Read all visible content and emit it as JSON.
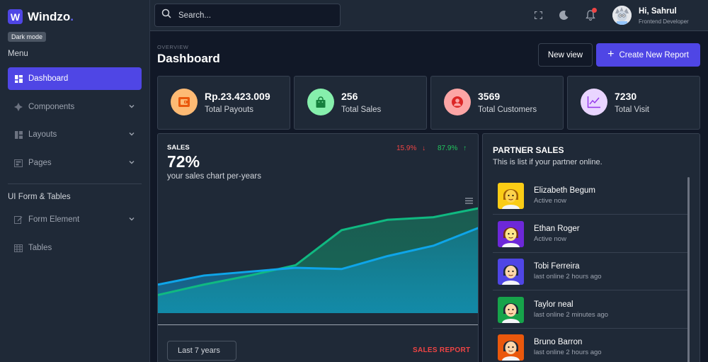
{
  "app": {
    "brand_letter": "W",
    "brand_name": "Windzo",
    "tooltip": "Dark mode"
  },
  "sidebar": {
    "menu_title": "Menu",
    "items": [
      {
        "label": "Dashboard",
        "icon": "grid-icon",
        "active": true
      },
      {
        "label": "Components",
        "icon": "diamond-icon"
      },
      {
        "label": "Layouts",
        "icon": "layout-icon"
      },
      {
        "label": "Pages",
        "icon": "pages-icon"
      }
    ],
    "form_title": "UI Form & Tables",
    "form_items": [
      {
        "label": "Form Element",
        "icon": "edit-icon"
      },
      {
        "label": "Tables",
        "icon": "table-icon"
      }
    ]
  },
  "topbar": {
    "search_placeholder": "Search...",
    "greeting": "Hi, Sahrul",
    "role": "Frontend Developer"
  },
  "main": {
    "overview": "OVERVIEW",
    "title": "Dashboard",
    "new_view": "New view",
    "create_report": "Create New Report"
  },
  "stats": [
    {
      "value": "Rp.23.423.009",
      "label": "Total Payouts",
      "icon": "wallet-icon",
      "color": "#fdba74"
    },
    {
      "value": "256",
      "label": "Total Sales",
      "icon": "shopping-bag-icon",
      "color": "#86efac"
    },
    {
      "value": "3569",
      "label": "Total Customers",
      "icon": "user-circle-icon",
      "color": "#fca5a5"
    },
    {
      "value": "7230",
      "label": "Total Visit",
      "icon": "chart-line-icon",
      "color": "#e9d5ff"
    }
  ],
  "sales": {
    "title": "SALES",
    "percent": "72%",
    "subtitle": "your sales chart per-years",
    "trend_down": "15.9%",
    "trend_up": "87.9%",
    "select_value": "Last 7 years",
    "report_link": "SALES REPORT"
  },
  "chart_data": {
    "type": "area",
    "x": [
      1,
      2,
      3,
      4,
      5,
      6,
      7,
      8
    ],
    "series": [
      {
        "values": [
          14,
          22,
          29,
          37,
          64,
          72,
          74,
          81
        ],
        "color": "#10b981"
      },
      {
        "values": [
          22,
          29,
          32,
          35,
          34,
          44,
          52,
          66
        ],
        "color": "#0ea5e9"
      }
    ],
    "ylim": [
      0,
      100
    ]
  },
  "partners": {
    "title": "PARTNER SALES",
    "subtitle": "This is list if your partner online.",
    "list": [
      {
        "name": "Elizabeth Begum",
        "status": "Active now",
        "bg": "#facc15",
        "hair": "#a16207",
        "skin": "#fcd34d"
      },
      {
        "name": "Ethan Roger",
        "status": "Active now",
        "bg": "#6d28d9",
        "hair": "#78350f",
        "skin": "#fde68a"
      },
      {
        "name": "Tobi Ferreira",
        "status": "last online 2 hours ago",
        "bg": "#4f46e5",
        "hair": "#1f2937",
        "skin": "#fed7aa"
      },
      {
        "name": "Taylor neal",
        "status": "last online 2 minutes ago",
        "bg": "#16a34a",
        "hair": "#1f2937",
        "skin": "#fed7aa"
      },
      {
        "name": "Bruno Barron",
        "status": "last online 2 hours ago",
        "bg": "#ea580c",
        "hair": "#1f2937",
        "skin": "#fed7aa"
      }
    ]
  }
}
